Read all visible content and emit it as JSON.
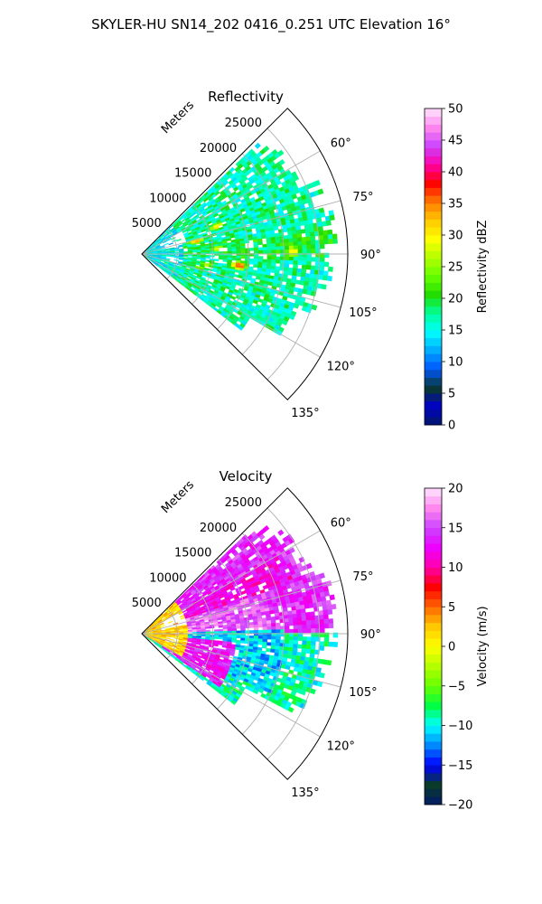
{
  "suptitle": "SKYLER-HU  SN14_202  0416_0.251 UTC Elevation 16°",
  "colors": {
    "reflectivity_stops": [
      "#001a66",
      "#0000c8",
      "#0a3a2a",
      "#0055ff",
      "#00aaff",
      "#00ffff",
      "#00ff99",
      "#22dd00",
      "#66ff00",
      "#b4ff00",
      "#ffff00",
      "#ffc800",
      "#ff7800",
      "#ff0000",
      "#ff00aa",
      "#cc44ff",
      "#ff88ee",
      "#ffe6ff"
    ],
    "velocity_stops": [
      "#001a66",
      "#0a3a2a",
      "#0000ff",
      "#0088ff",
      "#00ffff",
      "#00ff44",
      "#66ff00",
      "#b4ff00",
      "#ffff00",
      "#ffc800",
      "#ff6600",
      "#ff0000",
      "#ff00aa",
      "#ee00ff",
      "#cc44ff",
      "#ff88ee",
      "#ffe6ff"
    ]
  },
  "chart_data": [
    {
      "type": "heatmap",
      "projection": "polar-sector",
      "title": "Reflectivity",
      "range_label": "Meters",
      "range_ticks": [
        5000,
        10000,
        15000,
        20000,
        25000
      ],
      "range_tick_labels": [
        "5000",
        "10000",
        "15000",
        "20000",
        "25000"
      ],
      "range_max": 29000,
      "azimuth_range": [
        45,
        135
      ],
      "azimuth_ticks": [
        "60°",
        "75°",
        "90°",
        "105°",
        "120°",
        "135°"
      ],
      "grid": true,
      "colorbar": {
        "label": "Reflectivity dBZ",
        "range": [
          0,
          50
        ],
        "ticks": [
          "0",
          "5",
          "10",
          "15",
          "20",
          "25",
          "30",
          "35",
          "40",
          "45",
          "50"
        ]
      },
      "dominant_value_range": [
        15,
        25
      ],
      "features": [
        {
          "azimuth": 97,
          "range": 13500,
          "value": 38
        },
        {
          "azimuth": 77,
          "range": 7500,
          "value": 35
        },
        {
          "azimuth": 70,
          "range": 11000,
          "value": 32
        },
        {
          "azimuth": 86,
          "range": 10500,
          "value": 30
        },
        {
          "azimuth": 99,
          "range": 9000,
          "value": 28
        },
        {
          "azimuth": 103,
          "range": 8000,
          "value": 26
        },
        {
          "azimuth": 89,
          "range": 21000,
          "value": 30
        }
      ]
    },
    {
      "type": "heatmap",
      "projection": "polar-sector",
      "title": "Velocity",
      "range_label": "Meters",
      "range_ticks": [
        5000,
        10000,
        15000,
        20000,
        25000
      ],
      "range_tick_labels": [
        "5000",
        "10000",
        "15000",
        "20000",
        "25000"
      ],
      "range_max": 29000,
      "azimuth_range": [
        45,
        135
      ],
      "azimuth_ticks": [
        "60°",
        "75°",
        "90°",
        "105°",
        "120°",
        "135°"
      ],
      "grid": true,
      "colorbar": {
        "label": "Velocity (m/s)",
        "range": [
          -20,
          20
        ],
        "ticks": [
          "−20",
          "−15",
          "−10",
          "−5",
          "0",
          "5",
          "10",
          "15",
          "20"
        ]
      },
      "regions": [
        {
          "azimuth": [
            60,
            72
          ],
          "range": [
            6000,
            22000
          ],
          "value": 12
        },
        {
          "azimuth": [
            72,
            92
          ],
          "range": [
            4000,
            18000
          ],
          "value": 16
        },
        {
          "azimuth": [
            88,
            115
          ],
          "range": [
            6000,
            20000
          ],
          "value": -11
        },
        {
          "azimuth": [
            95,
            125
          ],
          "range": [
            3000,
            13000
          ],
          "value": 13
        },
        {
          "azimuth": [
            45,
            120
          ],
          "range": [
            0,
            6000
          ],
          "value": 2
        }
      ]
    }
  ]
}
